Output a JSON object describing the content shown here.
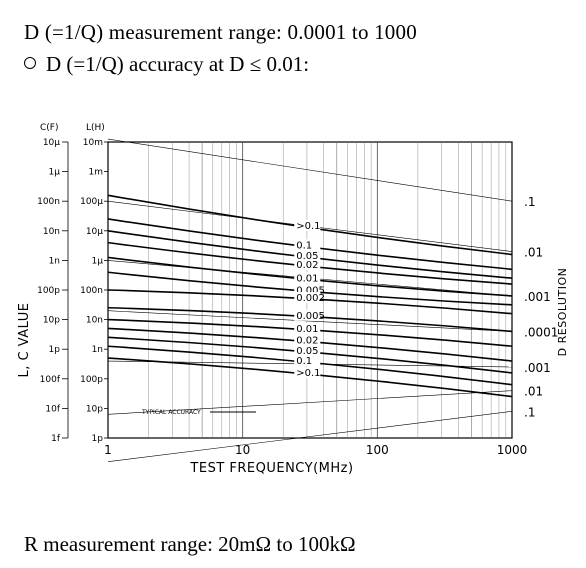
{
  "text": {
    "line1": "D (=1/Q) measurement range: 0.0001 to 1000",
    "line2": "D (=1/Q) accuracy at D ≤ 0.01:",
    "line3": "R measurement range: 20mΩ to 100kΩ"
  },
  "chart_data": {
    "type": "line",
    "xlabel": "TEST FREQUENCY(MHz)",
    "ylabel": "L, C VALUE",
    "right_label": "D RESOLUTION",
    "x_scale": "log",
    "xlim": [
      1,
      1000
    ],
    "x_ticks": [
      1,
      10,
      100,
      1000
    ],
    "x_tick_labels": [
      "1",
      "10",
      "100",
      "1000"
    ],
    "c_axis_title": "C(F)",
    "c_ticks": [
      "10μ",
      "1μ",
      "100n",
      "10n",
      "1n",
      "100p",
      "10p",
      "1p",
      "100f",
      "10f",
      "1f"
    ],
    "l_axis_title": "L(H)",
    "l_ticks": [
      "10m",
      "1m",
      "100μ",
      "10μ",
      "1μ",
      "100n",
      "10n",
      "1n",
      "100p",
      "10p",
      "1p"
    ],
    "right_ticks": [
      ".1",
      ".01",
      ".001",
      ".0001",
      ".001",
      ".01",
      ".1"
    ],
    "resolution_lines": {
      "values": [
        ".1",
        ".01",
        ".001",
        ".0001",
        ".001",
        ".01",
        ".1"
      ],
      "start_decade": [
        -0.1,
        2.0,
        4.0,
        5.7,
        7.4,
        9.2,
        10.8
      ],
      "end_decade": [
        2.0,
        3.7,
        5.2,
        6.4,
        7.6,
        8.4,
        9.1
      ]
    },
    "accuracy_curves": {
      "labels": [
        ">0.1",
        "0.1",
        "0.05",
        "0.02",
        "0.01",
        "0.005",
        "0.002",
        "0.005",
        "0.01",
        "0.02",
        "0.05",
        "0.1",
        ">0.1"
      ],
      "start_decade": [
        1.8,
        2.6,
        3.0,
        3.4,
        3.9,
        4.4,
        5.0,
        5.6,
        6.0,
        6.3,
        6.6,
        6.9,
        7.3
      ],
      "end_decade": [
        3.8,
        4.3,
        4.6,
        4.8,
        5.2,
        5.5,
        5.8,
        6.4,
        6.9,
        7.4,
        7.8,
        8.2,
        8.6
      ],
      "label_x": 25
    },
    "legend": {
      "label": "TYPICAL ACCURACY",
      "placement": "bottom-left"
    }
  }
}
